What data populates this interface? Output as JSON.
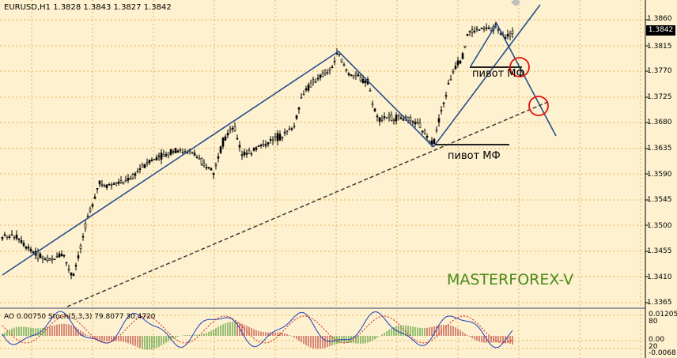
{
  "header": {
    "symbol_info": "EURUSD,H1  1.3828 1.3843 1.3827 1.3842"
  },
  "current_price": "1.3842",
  "annotations": {
    "pivot_top": "пивот МФ",
    "pivot_bottom": "пивот МФ",
    "watermark": "MASTERFOREX-V"
  },
  "indicator": {
    "header": "AO 0.00750  Stoch(5,3,3) 79.8077 30.4720",
    "ticks": [
      "0.01205",
      "80",
      "0.00",
      "20",
      "-0.0068"
    ]
  },
  "price_axis": {
    "ticks": [
      "1.3860",
      "1.3815",
      "1.3770",
      "1.3725",
      "1.3680",
      "1.3635",
      "1.3590",
      "1.3545",
      "1.3500",
      "1.3455",
      "1.3410",
      "1.3365"
    ]
  },
  "colors": {
    "background": "#fdf1cf",
    "grid": "#e8b45a",
    "candles": "#000000",
    "trendline": "#2a4f8c",
    "pivot_circle": "#e01010",
    "watermark": "#4a8a1c",
    "ao_up": "#2f8a1a",
    "ao_down": "#b22222"
  }
}
